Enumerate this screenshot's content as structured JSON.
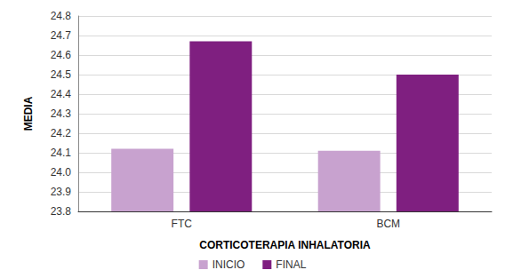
{
  "chart_data": {
    "type": "bar",
    "x_label": "CORTICOTERAPIA INHALATORIA",
    "y_label": "MEDIA",
    "categories": [
      "FTC",
      "BCM"
    ],
    "series": [
      {
        "name": "INICIO",
        "color": "#c8a2cf",
        "values": [
          24.12,
          24.11
        ]
      },
      {
        "name": "FINAL",
        "color": "#7f1f80",
        "values": [
          24.67,
          24.5
        ]
      }
    ],
    "ylim": [
      23.8,
      24.8
    ],
    "yticks": [
      23.8,
      23.9,
      {
        "value": 24,
        "label": "24.0"
      },
      24.1,
      24.2,
      24.3,
      24.4,
      24.5,
      24.6,
      24.7,
      24.8
    ],
    "grid": true,
    "legend": "bottom"
  }
}
